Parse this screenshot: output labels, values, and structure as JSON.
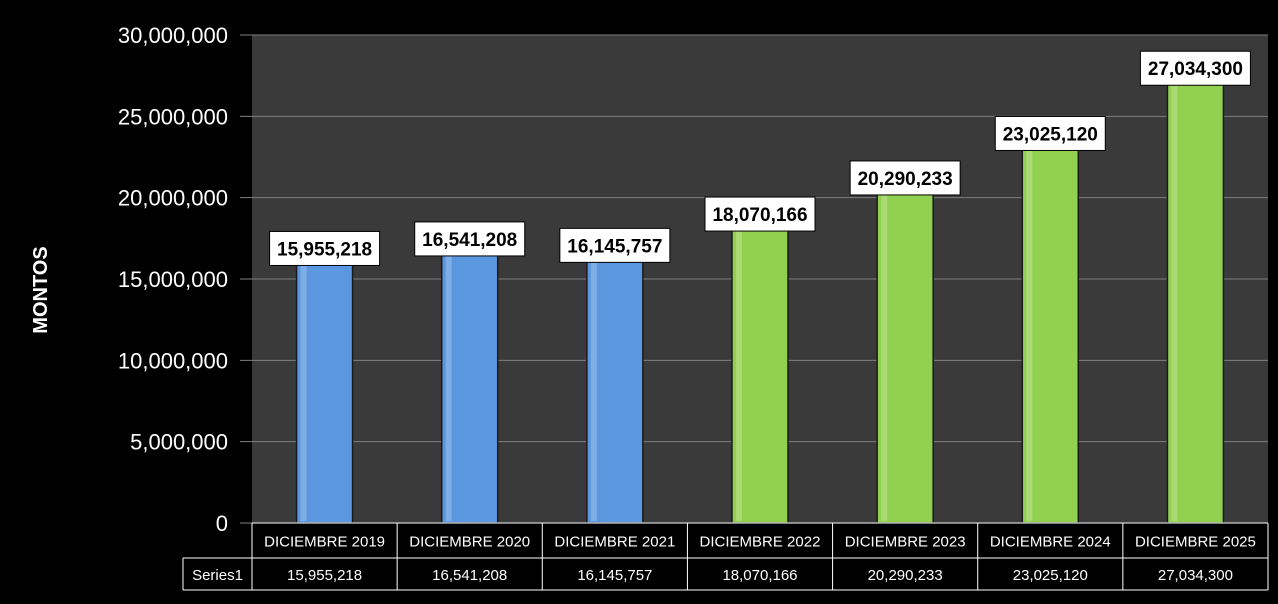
{
  "chart_data": {
    "type": "bar",
    "categories": [
      "DICIEMBRE 2019",
      "DICIEMBRE 2020",
      "DICIEMBRE 2021",
      "DICIEMBRE 2022",
      "DICIEMBRE 2023",
      "DICIEMBRE 2024",
      "DICIEMBRE 2025"
    ],
    "series": [
      {
        "name": "Series1",
        "values": [
          15955218,
          16541208,
          16145757,
          18070166,
          20290233,
          23025120,
          27034300
        ],
        "value_labels": [
          "15,955,218",
          "16,541,208",
          "16,145,757",
          "18,070,166",
          "20,290,233",
          "23,025,120",
          "27,034,300"
        ]
      }
    ],
    "bar_colors": [
      "#5b97de",
      "#5b97de",
      "#5b97de",
      "#92d050",
      "#92d050",
      "#92d050",
      "#92d050"
    ],
    "title": "",
    "xlabel": "",
    "ylabel": "MONTOS",
    "ylim": [
      0,
      30000000
    ],
    "yticks": [
      0,
      5000000,
      10000000,
      15000000,
      20000000,
      25000000,
      30000000
    ],
    "ytick_labels": [
      "0",
      "5,000,000",
      "10,000,000",
      "15,000,000",
      "20,000,000",
      "25,000,000",
      "30,000,000"
    ],
    "grid": true,
    "legend": "none",
    "data_table": {
      "row_label": "Series1",
      "values": [
        "15,955,218",
        "16,541,208",
        "16,145,757",
        "18,070,166",
        "20,290,233",
        "23,025,120",
        "27,034,300"
      ]
    },
    "colors": {
      "background": "#000000",
      "plot_background": "#3a3a3a",
      "gridline": "#7f7f7f",
      "text": "#ffffff",
      "label_box": "#ffffff"
    }
  }
}
